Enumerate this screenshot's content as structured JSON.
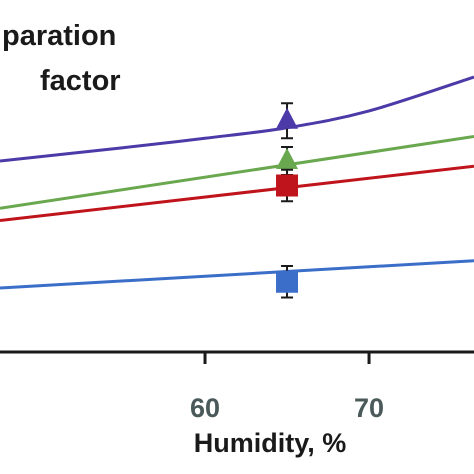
{
  "chart_data": {
    "type": "line",
    "title_lines": [
      "paration",
      "factor"
    ],
    "xlabel": "Humidity, %",
    "ylabel": "",
    "x_ticks": [
      60,
      70
    ],
    "xlim": [
      47.5,
      76.4
    ],
    "ylim": [
      0,
      1
    ],
    "grid": false,
    "legend": "none",
    "marker_x": 65,
    "series": [
      {
        "color": "#4b3aa8",
        "marker": "triangle",
        "x": [
          47.5,
          55,
          60,
          65,
          70,
          76.4
        ],
        "y": [
          0.54,
          0.578,
          0.605,
          0.635,
          0.683,
          0.78
        ],
        "point_y": 0.655,
        "err": 0.05
      },
      {
        "color": "#6aa84f",
        "marker": "triangle",
        "x": [
          47.5,
          76.4
        ],
        "y": [
          0.405,
          0.61
        ],
        "point_y": 0.54,
        "err": 0.04
      },
      {
        "color": "#c0141c",
        "marker": "square",
        "x": [
          47.5,
          76.4
        ],
        "y": [
          0.37,
          0.525
        ],
        "point_y": 0.47,
        "err": 0.045
      },
      {
        "color": "#3a6ec8",
        "marker": "square",
        "x": [
          47.5,
          76.4
        ],
        "y": [
          0.177,
          0.255
        ],
        "point_y": 0.195,
        "err": 0.045
      }
    ]
  }
}
